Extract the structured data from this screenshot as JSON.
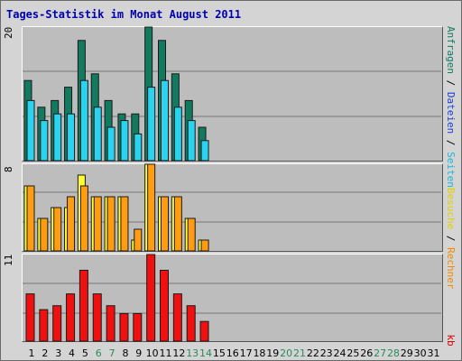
{
  "title": "Tages-Statistik im Monat August 2011",
  "panels": {
    "top": {
      "ymax_label": "20"
    },
    "middle": {
      "ymax_label": "8"
    },
    "bottom": {
      "ymax_label": "11"
    }
  },
  "legend": {
    "bottom_series": "kb",
    "middle_series_1": "Rechner",
    "middle_series_2": "Besuche",
    "top_series_1": "Seiten",
    "top_series_2": "Dateien",
    "top_series_3": "Anfragen",
    "separator": " / "
  },
  "colors": {
    "anfragen": "#127a5e",
    "dateien": "#2ad4f0",
    "besuche": "#ffff33",
    "rechner": "#ff9c12",
    "kb": "#f01010",
    "weekend_label": "#2a8a5a",
    "weekday_label": "#000000"
  },
  "chart_data": {
    "type": "bar",
    "title": "Tages-Statistik im Monat August 2011",
    "categories": [
      "1",
      "2",
      "3",
      "4",
      "5",
      "6",
      "7",
      "8",
      "9",
      "10",
      "11",
      "12",
      "13",
      "14",
      "15",
      "16",
      "17",
      "18",
      "19",
      "20",
      "21",
      "22",
      "23",
      "24",
      "25",
      "26",
      "27",
      "28",
      "29",
      "30",
      "31"
    ],
    "weekend_days": [
      "6",
      "7",
      "13",
      "14",
      "20",
      "21",
      "27",
      "28"
    ],
    "panels": [
      {
        "ymax": 20,
        "series": [
          {
            "name": "Anfragen",
            "values": [
              12,
              8,
              9,
              11,
              18,
              13,
              9,
              7,
              7,
              20,
              18,
              13,
              9,
              5,
              0,
              0,
              0,
              0,
              0,
              0,
              0,
              0,
              0,
              0,
              0,
              0,
              0,
              0,
              0,
              0,
              0
            ]
          },
          {
            "name": "Dateien",
            "values": [
              9,
              6,
              7,
              7,
              12,
              8,
              5,
              6,
              4,
              11,
              12,
              8,
              6,
              3,
              0,
              0,
              0,
              0,
              0,
              0,
              0,
              0,
              0,
              0,
              0,
              0,
              0,
              0,
              0,
              0,
              0
            ]
          }
        ]
      },
      {
        "ymax": 8,
        "series": [
          {
            "name": "Besuche",
            "values": [
              6,
              3,
              4,
              4,
              7,
              5,
              5,
              5,
              1,
              8,
              5,
              5,
              3,
              1,
              0,
              0,
              0,
              0,
              0,
              0,
              0,
              0,
              0,
              0,
              0,
              0,
              0,
              0,
              0,
              0,
              0
            ]
          },
          {
            "name": "Rechner",
            "values": [
              6,
              3,
              4,
              5,
              6,
              5,
              5,
              5,
              2,
              8,
              5,
              5,
              3,
              1,
              0,
              0,
              0,
              0,
              0,
              0,
              0,
              0,
              0,
              0,
              0,
              0,
              0,
              0,
              0,
              0,
              0
            ]
          }
        ]
      },
      {
        "ymax": 11,
        "series": [
          {
            "name": "kb",
            "values": [
              6,
              4,
              4.5,
              6,
              9,
              6,
              4.5,
              3.5,
              3.5,
              11,
              9,
              6,
              4.5,
              2.5,
              0,
              0,
              0,
              0,
              0,
              0,
              0,
              0,
              0,
              0,
              0,
              0,
              0,
              0,
              0,
              0,
              0
            ]
          }
        ]
      }
    ]
  }
}
